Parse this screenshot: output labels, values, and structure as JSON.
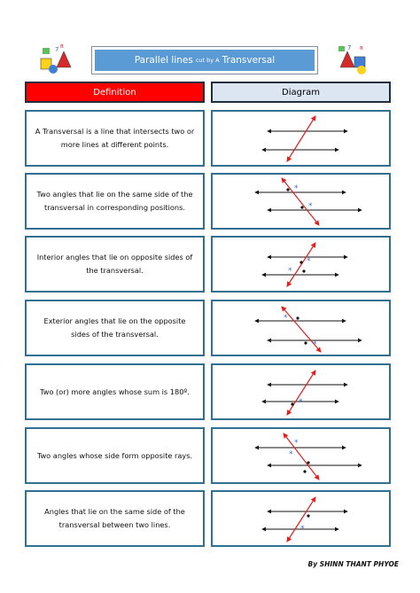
{
  "title": {
    "main": "Parallel lines",
    "small": "cut by A",
    "tail": "Transversal"
  },
  "headers": {
    "definition": "Definition",
    "diagram": "Diagram"
  },
  "rows": [
    {
      "term": "transversal",
      "definition": "A Transversal is a line that intersects two or more lines at different points."
    },
    {
      "term": "corresponding-angles",
      "definition": "Two angles that lie on the same side of the transversal in corresponding positions."
    },
    {
      "term": "alternate-interior-angles",
      "definition": "Interior angles that lie on opposite sides of the transversal."
    },
    {
      "term": "alternate-exterior-angles",
      "definition": "Exterior angles that lie on the opposite sides of the transversal."
    },
    {
      "term": "supplementary-angles",
      "definition": "Two (or) more angles whose sum is 180º."
    },
    {
      "term": "vertical-angles",
      "definition": "Two angles whose side form opposite rays."
    },
    {
      "term": "same-side-interior-angles",
      "definition": "Angles that lie on the same side of the transversal between two lines."
    }
  ],
  "clipart": {
    "left": "math-clipart-icon",
    "right": "math-clipart-icon"
  },
  "colors": {
    "title_bg": "#5b9bd5",
    "definition_header": "#ff0000",
    "diagram_header": "#dce6f2",
    "cell_border": "#31708f",
    "transversal": "#e02020",
    "star": "#3b6fd4"
  },
  "footer": "By SHINN THANT PHYOE"
}
